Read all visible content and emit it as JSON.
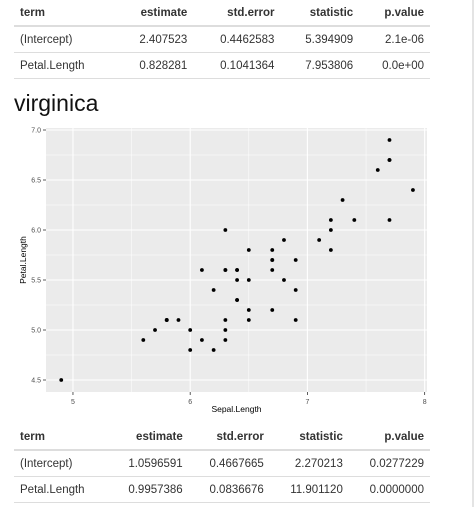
{
  "table_top": {
    "columns": [
      "term",
      "estimate",
      "std.error",
      "statistic",
      "p.value"
    ],
    "rows": [
      [
        "(Intercept)",
        "2.407523",
        "0.4462583",
        "5.394909",
        "2.1e-06"
      ],
      [
        "Petal.Length",
        "0.828281",
        "0.1041364",
        "7.953806",
        "0.0e+00"
      ]
    ]
  },
  "section_title": "virginica",
  "chart_data": {
    "type": "scatter",
    "title": "",
    "xlabel": "Sepal.Length",
    "ylabel": "Petal.Length",
    "xlim": [
      4.77,
      8.02
    ],
    "ylim": [
      4.38,
      7.02
    ],
    "x_ticks": [
      "5",
      "6",
      "7",
      "8"
    ],
    "y_ticks": [
      "4.5",
      "5.0",
      "5.5",
      "6.0",
      "6.5",
      "7.0"
    ],
    "grid": true,
    "points": [
      [
        6.3,
        6.0
      ],
      [
        5.8,
        5.1
      ],
      [
        7.1,
        5.9
      ],
      [
        6.3,
        5.6
      ],
      [
        6.5,
        5.8
      ],
      [
        7.6,
        6.6
      ],
      [
        4.9,
        4.5
      ],
      [
        7.3,
        6.3
      ],
      [
        6.7,
        5.8
      ],
      [
        7.2,
        6.1
      ],
      [
        6.5,
        5.1
      ],
      [
        6.4,
        5.3
      ],
      [
        6.8,
        5.5
      ],
      [
        5.7,
        5.0
      ],
      [
        5.8,
        5.1
      ],
      [
        6.4,
        5.3
      ],
      [
        6.5,
        5.5
      ],
      [
        7.7,
        6.7
      ],
      [
        7.7,
        6.9
      ],
      [
        6.0,
        5.0
      ],
      [
        6.9,
        5.7
      ],
      [
        5.6,
        4.9
      ],
      [
        7.7,
        6.7
      ],
      [
        6.3,
        4.9
      ],
      [
        6.7,
        5.7
      ],
      [
        7.2,
        6.0
      ],
      [
        6.2,
        4.8
      ],
      [
        6.1,
        4.9
      ],
      [
        6.4,
        5.6
      ],
      [
        7.2,
        5.8
      ],
      [
        7.4,
        6.1
      ],
      [
        7.9,
        6.4
      ],
      [
        6.4,
        5.6
      ],
      [
        6.3,
        5.1
      ],
      [
        6.1,
        5.6
      ],
      [
        7.7,
        6.1
      ],
      [
        6.3,
        5.6
      ],
      [
        6.4,
        5.5
      ],
      [
        6.0,
        4.8
      ],
      [
        6.9,
        5.4
      ],
      [
        6.7,
        5.6
      ],
      [
        6.9,
        5.1
      ],
      [
        5.8,
        5.1
      ],
      [
        6.8,
        5.9
      ],
      [
        6.7,
        5.7
      ],
      [
        6.7,
        5.2
      ],
      [
        6.3,
        5.0
      ],
      [
        6.5,
        5.2
      ],
      [
        6.2,
        5.4
      ],
      [
        5.9,
        5.1
      ]
    ]
  },
  "table_bottom": {
    "columns": [
      "term",
      "estimate",
      "std.error",
      "statistic",
      "p.value"
    ],
    "rows": [
      [
        "(Intercept)",
        "1.0596591",
        "0.4667665",
        "2.270213",
        "0.0277229"
      ],
      [
        "Petal.Length",
        "0.9957386",
        "0.0836676",
        "11.901120",
        "0.0000000"
      ]
    ]
  },
  "colors": {
    "panel": "#ebebeb",
    "grid": "#ffffff",
    "point": "#000000"
  }
}
